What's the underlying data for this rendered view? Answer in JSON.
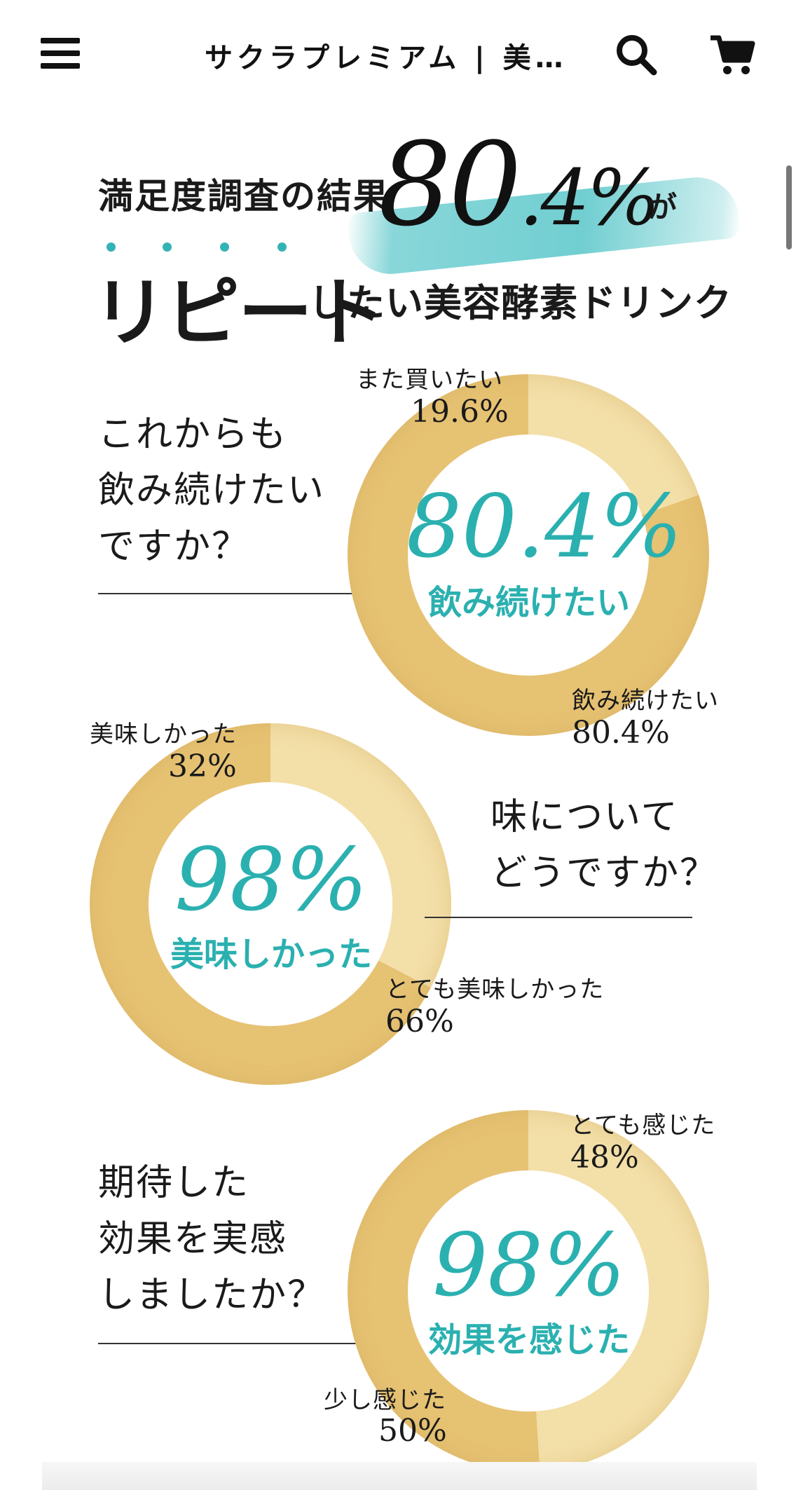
{
  "header": {
    "title": "サクラプレミアム | 美容...",
    "menu_icon": "hamburger-menu-icon",
    "search_icon": "search-icon",
    "cart_icon": "cart-icon"
  },
  "headline": {
    "line1": "満足度調査の結果",
    "big_value": "80",
    "big_value_small": ".4%",
    "particle": "が",
    "repeat": "リピート",
    "rest": "したい美容酵素ドリンク"
  },
  "accent_colors": {
    "teal": "#2bb0b0",
    "gold": "#e9c97a"
  },
  "surveys": [
    {
      "question_lines": [
        "これからも",
        "飲み続けたい",
        "ですか？"
      ],
      "center_value": "80.4%",
      "center_label": "飲み続けたい",
      "segments": [
        {
          "label": "また買いたい",
          "value": "19.6%"
        },
        {
          "label": "飲み続けたい",
          "value": "80.4%"
        }
      ],
      "chart_data": {
        "type": "pie",
        "categories": [
          "また買いたい",
          "飲み続けたい"
        ],
        "values": [
          19.6,
          80.4
        ]
      }
    },
    {
      "question_lines": [
        "味について",
        "どうですか？"
      ],
      "center_value": "98%",
      "center_label": "美味しかった",
      "segments": [
        {
          "label": "美味しかった",
          "value": "32%"
        },
        {
          "label": "とても美味しかった",
          "value": "66%"
        }
      ],
      "chart_data": {
        "type": "pie",
        "categories": [
          "美味しかった",
          "とても美味しかった"
        ],
        "values": [
          32,
          66
        ]
      }
    },
    {
      "question_lines": [
        "期待した",
        "効果を実感",
        "しましたか？"
      ],
      "center_value": "98%",
      "center_label": "効果を感じた",
      "segments": [
        {
          "label": "とても感じた",
          "value": "48%"
        },
        {
          "label": "少し感じた",
          "value": "50%"
        }
      ],
      "chart_data": {
        "type": "pie",
        "categories": [
          "とても感じた",
          "少し感じた"
        ],
        "values": [
          48,
          50
        ]
      }
    }
  ]
}
